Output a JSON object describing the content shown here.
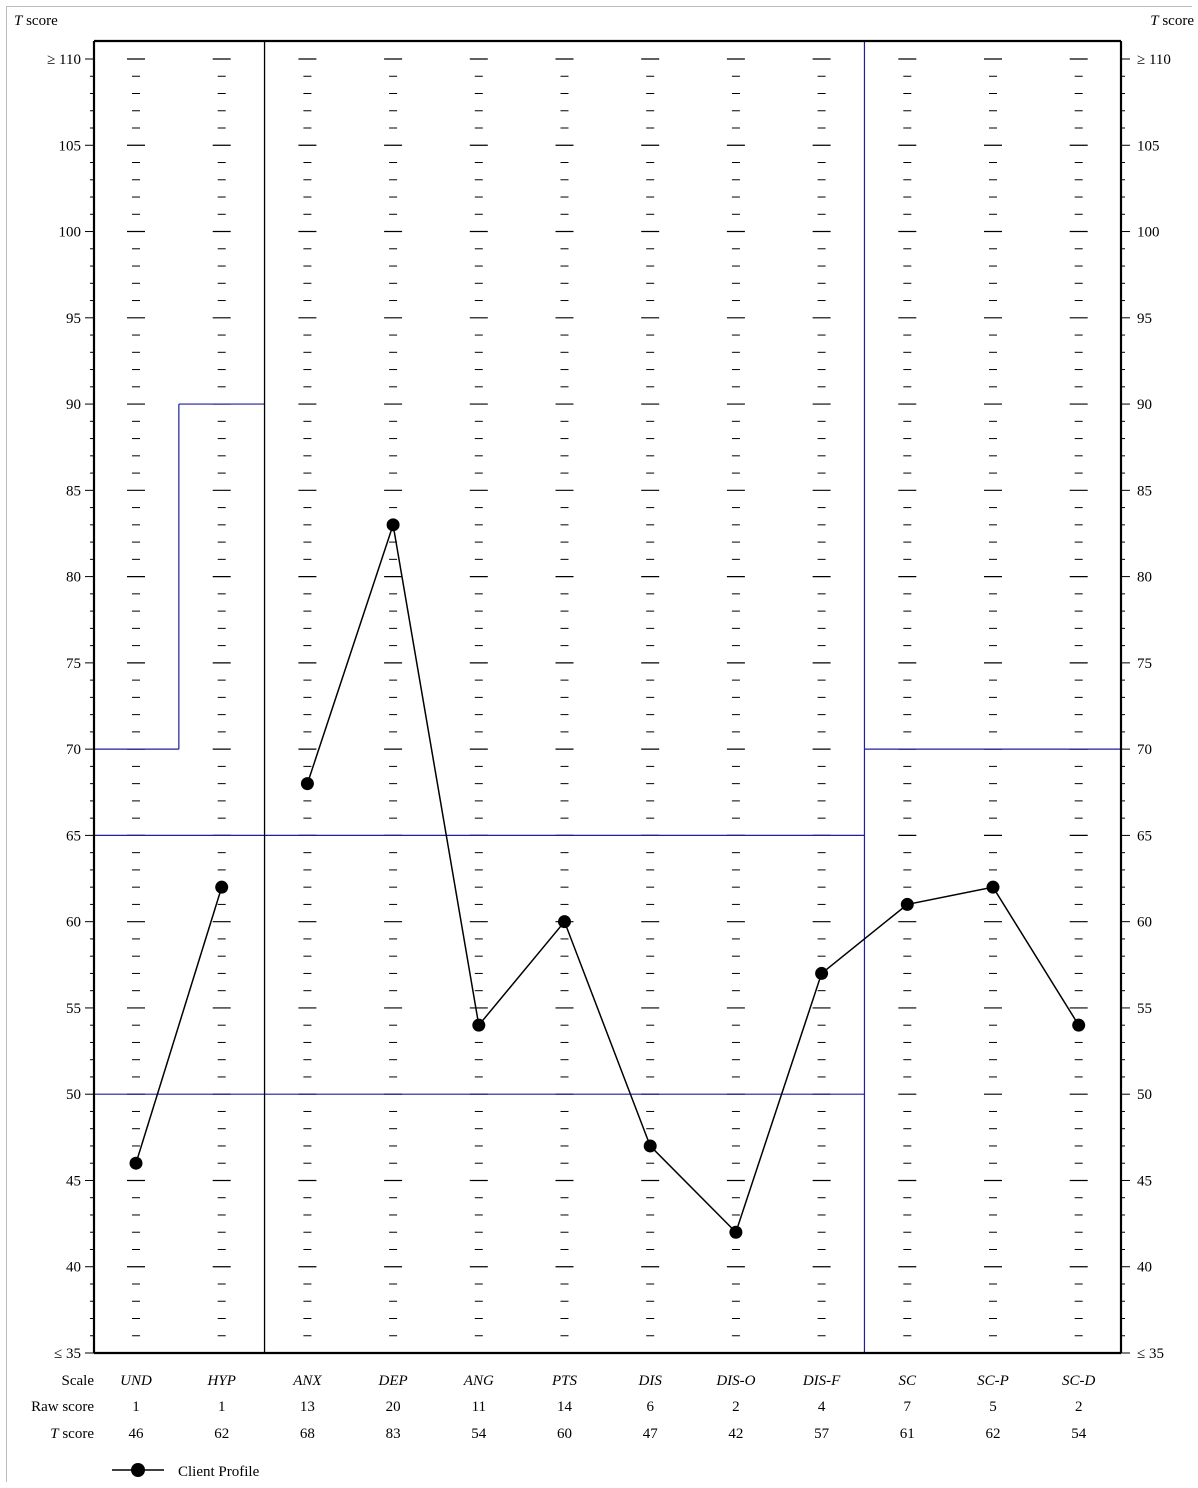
{
  "labels": {
    "t_score_axis": "T score",
    "top_tick": "≥ 110",
    "bottom_tick": "≤ 35",
    "row_scale": "Scale",
    "row_raw": "Raw score",
    "row_t": "T score",
    "legend": "Client Profile"
  },
  "colors": {
    "axis": "#000000",
    "reference_lines": "#1f1f9e",
    "profile": "#000000"
  },
  "chart_data": {
    "type": "line",
    "title": "",
    "ylabel": "T score",
    "ylim": [
      35,
      110
    ],
    "y_ticks": [
      110,
      105,
      100,
      95,
      90,
      85,
      80,
      75,
      70,
      65,
      60,
      55,
      50,
      45,
      40,
      35
    ],
    "y_tick_labels": [
      "≥ 110",
      "105",
      "100",
      "95",
      "90",
      "85",
      "80",
      "75",
      "70",
      "65",
      "60",
      "55",
      "50",
      "45",
      "40",
      "≤ 35"
    ],
    "categories": [
      "UND",
      "HYP",
      "ANX",
      "DEP",
      "ANG",
      "PTS",
      "DIS",
      "DIS-O",
      "DIS-F",
      "SC",
      "SC-P",
      "SC-D"
    ],
    "raw_scores": [
      "1",
      "1",
      "13",
      "20",
      "11",
      "14",
      "6",
      "2",
      "4",
      "7",
      "5",
      "2"
    ],
    "t_scores": [
      "46",
      "62",
      "68",
      "83",
      "54",
      "60",
      "47",
      "42",
      "57",
      "61",
      "62",
      "54"
    ],
    "series": [
      {
        "name": "Client Profile",
        "segments": [
          {
            "categories": [
              "UND",
              "HYP"
            ],
            "values": [
              46,
              62
            ]
          },
          {
            "categories": [
              "ANX",
              "DEP",
              "ANG",
              "PTS",
              "DIS",
              "DIS-O",
              "DIS-F",
              "SC",
              "SC-P",
              "SC-D"
            ],
            "values": [
              68,
              83,
              54,
              60,
              47,
              42,
              57,
              61,
              62,
              54
            ]
          }
        ]
      }
    ],
    "groups": [
      {
        "categories": [
          "UND",
          "HYP"
        ]
      },
      {
        "categories": [
          "ANX",
          "DEP",
          "ANG",
          "PTS",
          "DIS",
          "DIS-O",
          "DIS-F"
        ]
      },
      {
        "categories": [
          "SC",
          "SC-P",
          "SC-D"
        ]
      }
    ],
    "reference_lines": [
      {
        "categories": [
          "UND"
        ],
        "value": 70
      },
      {
        "categories": [
          "HYP"
        ],
        "value": 90
      },
      {
        "categories": [
          "UND",
          "HYP",
          "ANX",
          "DEP",
          "ANG",
          "PTS",
          "DIS",
          "DIS-O",
          "DIS-F"
        ],
        "value": 65
      },
      {
        "categories": [
          "UND",
          "HYP",
          "ANX",
          "DEP",
          "ANG",
          "PTS",
          "DIS",
          "DIS-O",
          "DIS-F"
        ],
        "value": 50
      },
      {
        "categories": [
          "SC",
          "SC-P",
          "SC-D"
        ],
        "value": 70
      }
    ],
    "grid": "dashed column tick marks at every T-score unit",
    "legend": "bottom-left"
  }
}
